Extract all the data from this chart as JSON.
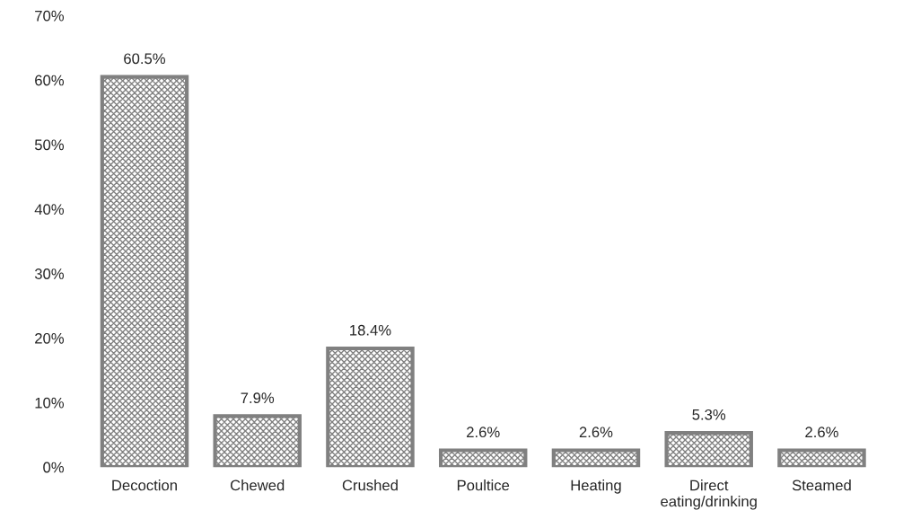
{
  "chart_data": {
    "type": "bar",
    "categories": [
      "Decoction",
      "Chewed",
      "Crushed",
      "Poultice",
      "Heating",
      "Direct\neating/drinking",
      "Steamed"
    ],
    "values": [
      60.5,
      7.9,
      18.4,
      2.6,
      2.6,
      5.3,
      2.6
    ],
    "value_labels": [
      "60.5%",
      "7.9%",
      "18.4%",
      "2.6%",
      "2.6%",
      "5.3%",
      "2.6%"
    ],
    "color": "#808080",
    "ylim": [
      0,
      70
    ],
    "yticks": [
      {
        "value": 0,
        "label": "0%"
      },
      {
        "value": 10,
        "label": "10%"
      },
      {
        "value": 20,
        "label": "20%"
      },
      {
        "value": 30,
        "label": "30%"
      },
      {
        "value": 40,
        "label": "40%"
      },
      {
        "value": 50,
        "label": "50%"
      },
      {
        "value": 60,
        "label": "60%"
      },
      {
        "value": 70,
        "label": "70%"
      }
    ],
    "grid": false,
    "legend": false
  }
}
